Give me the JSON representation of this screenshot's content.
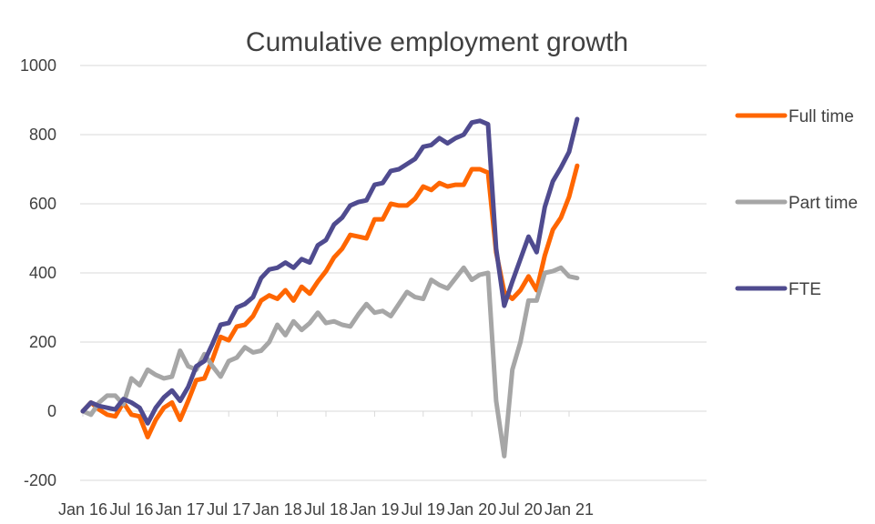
{
  "chart_data": {
    "type": "line",
    "title": "Cumulative employment growth",
    "xlabel": "",
    "ylabel": "",
    "ylim": [
      -200,
      1000
    ],
    "yticks": [
      -200,
      0,
      200,
      400,
      600,
      800,
      1000
    ],
    "xtick_labels": [
      "Jan 16",
      "Jul 16",
      "Jan 17",
      "Jul 17",
      "Jan 18",
      "Jul 18",
      "Jan 19",
      "Jul 19",
      "Jan 20",
      "Jul 20",
      "Jan 21"
    ],
    "grid": true,
    "legend_position": "right",
    "x": [
      "Jan 16",
      "Feb 16",
      "Mar 16",
      "Apr 16",
      "May 16",
      "Jun 16",
      "Jul 16",
      "Aug 16",
      "Sep 16",
      "Oct 16",
      "Nov 16",
      "Dec 16",
      "Jan 17",
      "Feb 17",
      "Mar 17",
      "Apr 17",
      "May 17",
      "Jun 17",
      "Jul 17",
      "Aug 17",
      "Sep 17",
      "Oct 17",
      "Nov 17",
      "Dec 17",
      "Jan 18",
      "Feb 18",
      "Mar 18",
      "Apr 18",
      "May 18",
      "Jun 18",
      "Jul 18",
      "Aug 18",
      "Sep 18",
      "Oct 18",
      "Nov 18",
      "Dec 18",
      "Jan 19",
      "Feb 19",
      "Mar 19",
      "Apr 19",
      "May 19",
      "Jun 19",
      "Jul 19",
      "Aug 19",
      "Sep 19",
      "Oct 19",
      "Nov 19",
      "Dec 19",
      "Jan 20",
      "Feb 20",
      "Mar 20",
      "Apr 20",
      "May 20",
      "Jun 20",
      "Jul 20",
      "Aug 20",
      "Sep 20",
      "Oct 20",
      "Nov 20",
      "Dec 20",
      "Jan 21",
      "Feb 21"
    ],
    "series": [
      {
        "name": "Full time",
        "color": "#ff6600",
        "values": [
          0,
          25,
          5,
          -10,
          -15,
          25,
          -10,
          -15,
          -75,
          -25,
          10,
          25,
          -25,
          30,
          90,
          95,
          150,
          215,
          205,
          245,
          250,
          275,
          320,
          335,
          325,
          350,
          320,
          360,
          340,
          375,
          405,
          445,
          470,
          510,
          505,
          500,
          555,
          555,
          600,
          595,
          595,
          615,
          650,
          640,
          660,
          650,
          655,
          655,
          700,
          700,
          690,
          460,
          345,
          325,
          350,
          390,
          350,
          450,
          525,
          560,
          620,
          710
        ]
      },
      {
        "name": "Part time",
        "color": "#a6a6a6",
        "values": [
          0,
          -10,
          25,
          45,
          45,
          20,
          95,
          75,
          120,
          105,
          95,
          100,
          175,
          130,
          120,
          165,
          130,
          100,
          145,
          155,
          185,
          170,
          175,
          200,
          250,
          220,
          260,
          235,
          255,
          285,
          255,
          260,
          250,
          245,
          280,
          310,
          285,
          290,
          275,
          310,
          345,
          330,
          325,
          380,
          365,
          355,
          385,
          415,
          380,
          395,
          400,
          30,
          -130,
          120,
          200,
          320,
          320,
          400,
          405,
          415,
          390,
          385
        ]
      },
      {
        "name": "FTE",
        "color": "#4f4b8f",
        "values": [
          0,
          25,
          15,
          10,
          5,
          35,
          25,
          10,
          -35,
          10,
          40,
          60,
          30,
          70,
          130,
          145,
          195,
          250,
          255,
          300,
          310,
          330,
          385,
          410,
          415,
          430,
          415,
          440,
          430,
          480,
          495,
          540,
          560,
          595,
          605,
          610,
          655,
          660,
          695,
          700,
          715,
          730,
          765,
          770,
          790,
          775,
          790,
          800,
          835,
          840,
          830,
          470,
          305,
          375,
          440,
          505,
          460,
          590,
          665,
          705,
          750,
          845
        ]
      }
    ]
  }
}
